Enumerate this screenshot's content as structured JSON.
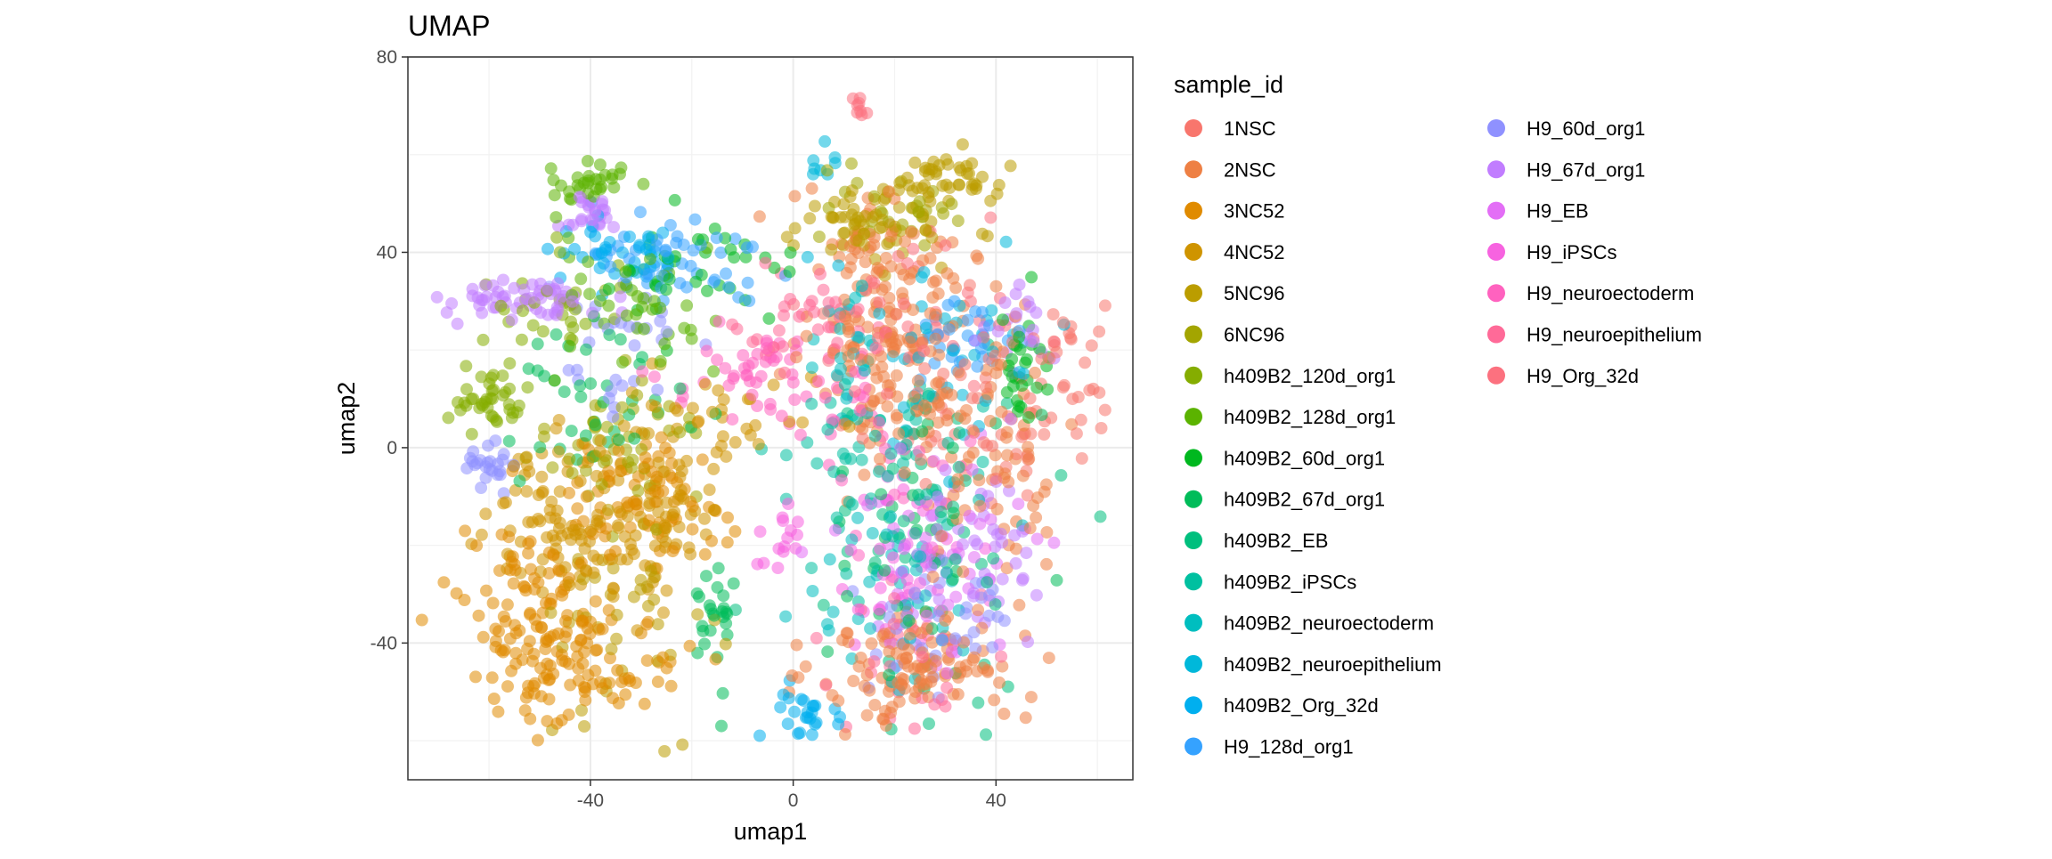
{
  "chart_data": {
    "type": "scatter",
    "title": "UMAP",
    "xlabel": "umap1",
    "ylabel": "umap2",
    "xlim": [
      -76,
      67
    ],
    "ylim": [
      -68,
      80
    ],
    "x_ticks": [
      -40,
      0,
      40
    ],
    "y_ticks": [
      80,
      40,
      0,
      -40
    ],
    "x_tick_labels": [
      "-40",
      "0",
      "40"
    ],
    "y_tick_labels": [
      "80",
      "40",
      "0",
      "-40"
    ],
    "grid": true,
    "legend_title": "sample_id",
    "legend_position": "right",
    "point_alpha": 0.55,
    "series": [
      {
        "name": "1NSC",
        "color": "#F8766D",
        "clusters": [
          [
            35,
            8,
            12,
            10,
            60
          ],
          [
            55,
            18,
            5,
            10,
            25
          ]
        ]
      },
      {
        "name": "2NSC",
        "color": "#EE8044",
        "clusters": [
          [
            20,
            20,
            8,
            12,
            150
          ],
          [
            25,
            -45,
            10,
            6,
            120
          ],
          [
            40,
            0,
            8,
            15,
            80
          ],
          [
            15,
            42,
            8,
            5,
            40
          ]
        ]
      },
      {
        "name": "3NC52",
        "color": "#E08B00",
        "clusters": [
          [
            -50,
            -35,
            8,
            10,
            120
          ],
          [
            -30,
            -10,
            8,
            6,
            80
          ],
          [
            -38,
            -45,
            8,
            6,
            60
          ]
        ]
      },
      {
        "name": "4NC52",
        "color": "#CF9400",
        "clusters": [
          [
            -45,
            -15,
            8,
            8,
            100
          ],
          [
            -25,
            -15,
            6,
            8,
            60
          ],
          [
            -15,
            5,
            10,
            5,
            40
          ]
        ]
      },
      {
        "name": "5NC96",
        "color": "#BB9D00",
        "clusters": [
          [
            15,
            46,
            8,
            4,
            70
          ],
          [
            30,
            55,
            5,
            3,
            40
          ],
          [
            -30,
            -35,
            8,
            10,
            40
          ]
        ]
      },
      {
        "name": "6NC96",
        "color": "#A3A500",
        "clusters": [
          [
            -35,
            0,
            8,
            8,
            50
          ],
          [
            20,
            50,
            6,
            4,
            30
          ]
        ]
      },
      {
        "name": "h409B2_120d_org1",
        "color": "#85AD00",
        "clusters": [
          [
            -60,
            10,
            4,
            3,
            40
          ],
          [
            -45,
            30,
            8,
            5,
            30
          ]
        ]
      },
      {
        "name": "h409B2_128d_org1",
        "color": "#5BB300",
        "clusters": [
          [
            -40,
            54,
            4,
            2,
            30
          ],
          [
            -30,
            30,
            10,
            8,
            40
          ]
        ]
      },
      {
        "name": "h409B2_60d_org1",
        "color": "#00B81F",
        "clusters": [
          [
            -20,
            35,
            10,
            5,
            40
          ],
          [
            45,
            15,
            3,
            6,
            30
          ]
        ]
      },
      {
        "name": "h409B2_67d_org1",
        "color": "#00BC59",
        "clusters": [
          [
            -15,
            -35,
            2,
            5,
            25
          ],
          [
            -40,
            10,
            10,
            8,
            40
          ],
          [
            25,
            -15,
            10,
            15,
            40
          ]
        ]
      },
      {
        "name": "h409B2_EB",
        "color": "#00BF7D",
        "clusters": [
          [
            30,
            -20,
            10,
            15,
            50
          ]
        ]
      },
      {
        "name": "h409B2_iPSCs",
        "color": "#00C0A0",
        "clusters": [
          [
            20,
            -10,
            10,
            15,
            40
          ],
          [
            10,
            0,
            5,
            8,
            25
          ]
        ]
      },
      {
        "name": "h409B2_neuroectoderm",
        "color": "#00BEBF",
        "clusters": [
          [
            20,
            -30,
            8,
            10,
            40
          ],
          [
            10,
            20,
            5,
            8,
            25
          ]
        ]
      },
      {
        "name": "h409B2_neuroepithelium",
        "color": "#00B8DA",
        "clusters": [
          [
            30,
            20,
            10,
            12,
            40
          ],
          [
            5,
            58,
            2,
            2,
            8
          ]
        ]
      },
      {
        "name": "h409B2_Org_32d",
        "color": "#00AFEF",
        "clusters": [
          [
            -35,
            40,
            8,
            4,
            40
          ],
          [
            3,
            -55,
            3,
            4,
            25
          ]
        ]
      },
      {
        "name": "H9_128d_org1",
        "color": "#35A2FF",
        "clusters": [
          [
            -25,
            38,
            10,
            5,
            50
          ],
          [
            35,
            22,
            5,
            5,
            30
          ]
        ]
      },
      {
        "name": "H9_60d_org1",
        "color": "#8F91FF",
        "clusters": [
          [
            -60,
            -5,
            3,
            3,
            25
          ],
          [
            -35,
            20,
            10,
            8,
            30
          ],
          [
            30,
            -35,
            8,
            8,
            40
          ]
        ]
      },
      {
        "name": "H9_67d_org1",
        "color": "#C17DFF",
        "clusters": [
          [
            -55,
            30,
            8,
            2,
            60
          ],
          [
            -40,
            48,
            3,
            2,
            25
          ],
          [
            35,
            -20,
            8,
            10,
            50
          ],
          [
            45,
            25,
            3,
            3,
            20
          ]
        ]
      },
      {
        "name": "H9_EB",
        "color": "#E36EF6",
        "clusters": [
          [
            28,
            -22,
            10,
            12,
            50
          ]
        ]
      },
      {
        "name": "H9_iPSCs",
        "color": "#F763E0",
        "clusters": [
          [
            20,
            -25,
            8,
            10,
            40
          ],
          [
            -2,
            -20,
            2,
            3,
            15
          ]
        ]
      },
      {
        "name": "H9_neuroectoderm",
        "color": "#FF62BF",
        "clusters": [
          [
            -5,
            15,
            10,
            5,
            50
          ],
          [
            20,
            0,
            8,
            10,
            30
          ]
        ]
      },
      {
        "name": "H9_neuroepithelium",
        "color": "#FF6A98",
        "clusters": [
          [
            5,
            25,
            8,
            5,
            40
          ],
          [
            25,
            -40,
            8,
            8,
            30
          ]
        ]
      },
      {
        "name": "H9_Org_32d",
        "color": "#FC717F",
        "clusters": [
          [
            20,
            25,
            10,
            8,
            40
          ],
          [
            13,
            70,
            1,
            1,
            8
          ]
        ]
      }
    ]
  }
}
